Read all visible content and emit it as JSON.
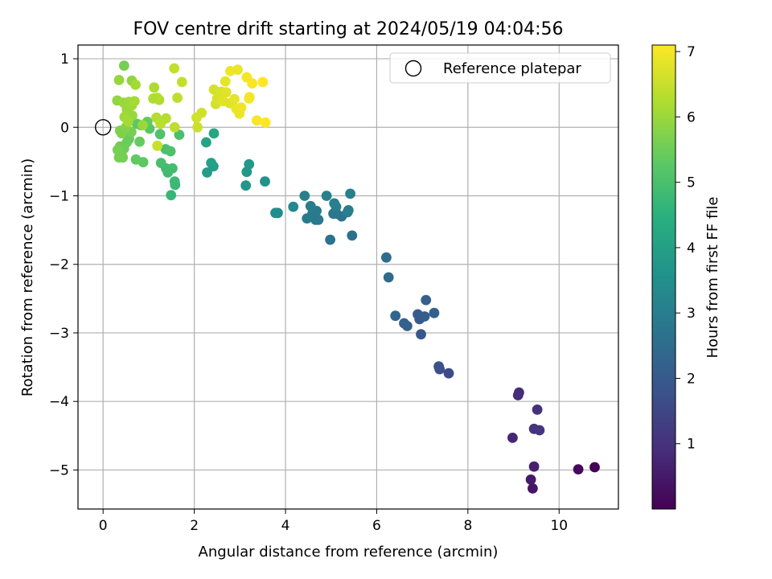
{
  "chart_data": {
    "type": "scatter",
    "title": "FOV centre drift starting at 2024/05/19 04:04:56",
    "xlabel": "Angular distance from reference (arcmin)",
    "ylabel": "Rotation from reference (arcmin)",
    "xlim": [
      -0.55,
      11.3
    ],
    "ylim": [
      -5.57,
      1.2
    ],
    "xticks": [
      0,
      2,
      4,
      6,
      8,
      10
    ],
    "yticks": [
      1,
      0,
      -1,
      -2,
      -3,
      -4,
      -5
    ],
    "xtick_labels": [
      "0",
      "2",
      "4",
      "6",
      "8",
      "10"
    ],
    "ytick_labels": [
      "1",
      "0",
      "−1",
      "−2",
      "−3",
      "−4",
      "−5"
    ],
    "grid": true,
    "legend": {
      "position": "top-right",
      "entries": [
        "Reference platepar"
      ]
    },
    "reference_point": {
      "x": 0,
      "y": 0,
      "label": "Reference platepar"
    },
    "colorbar": {
      "label": "Hours from first FF file",
      "min": 0.0,
      "max": 7.1,
      "ticks": [
        1,
        2,
        3,
        4,
        5,
        6,
        7
      ],
      "tick_labels": [
        "1",
        "2",
        "3",
        "4",
        "5",
        "6",
        "7"
      ],
      "colormap": "viridis"
    },
    "series": [
      {
        "x": [
          10.78,
          10.42,
          9.42,
          9.38,
          9.45,
          8.98,
          9.12,
          9.1,
          9.52,
          9.45,
          9.57
        ],
        "y": [
          -4.96,
          -4.99,
          -5.27,
          -5.14,
          -4.95,
          -4.53,
          -3.87,
          -3.91,
          -4.12,
          -4.4,
          -4.42
        ],
        "hours": [
          0.05,
          0.15,
          0.4,
          0.5,
          0.6,
          0.75,
          0.85,
          0.9,
          1.0,
          1.05,
          1.1
        ]
      },
      {
        "x": [
          7.58,
          7.38,
          7.36,
          6.97,
          6.94,
          6.9,
          7.05,
          7.08,
          7.26,
          6.67,
          6.6,
          6.41,
          6.26,
          6.21
        ],
        "y": [
          -3.59,
          -3.53,
          -3.49,
          -3.02,
          -2.8,
          -2.73,
          -2.76,
          -2.52,
          -2.71,
          -2.9,
          -2.86,
          -2.75,
          -2.19,
          -1.9
        ],
        "hours": [
          1.6,
          1.7,
          1.75,
          1.95,
          2.0,
          2.05,
          2.1,
          2.15,
          2.2,
          2.2,
          2.25,
          2.3,
          2.45,
          2.5
        ]
      },
      {
        "x": [
          5.46,
          4.98,
          5.23,
          5.12,
          5.05,
          4.72,
          4.66,
          4.47,
          4.59,
          4.55,
          4.68,
          5.38,
          5.11,
          5.07,
          5.42,
          5.36,
          4.9,
          4.42
        ],
        "y": [
          -1.58,
          -1.64,
          -1.3,
          -1.26,
          -1.26,
          -1.35,
          -1.35,
          -1.33,
          -1.26,
          -1.15,
          -1.22,
          -1.21,
          -1.16,
          -1.11,
          -0.97,
          -1.24,
          -1.0,
          -1.0
        ],
        "hours": [
          2.6,
          2.65,
          2.7,
          2.75,
          2.8,
          2.85,
          2.85,
          2.9,
          2.9,
          2.95,
          2.95,
          3.0,
          3.0,
          3.05,
          3.05,
          3.0,
          3.1,
          3.1
        ]
      },
      {
        "x": [
          4.17,
          3.83,
          3.78,
          3.55,
          3.13,
          3.15,
          3.2,
          2.28,
          2.42,
          2.37,
          2.26,
          2.43
        ],
        "y": [
          -1.16,
          -1.25,
          -1.25,
          -0.79,
          -0.85,
          -0.65,
          -0.54,
          -0.66,
          -0.57,
          -0.52,
          -0.22,
          -0.09
        ],
        "hours": [
          3.3,
          3.4,
          3.45,
          3.6,
          3.7,
          3.75,
          3.8,
          3.9,
          3.95,
          4.0,
          4.1,
          4.2
        ]
      },
      {
        "x": [
          1.49,
          1.58,
          1.57,
          1.42,
          1.52,
          1.38,
          1.27,
          1.37,
          1.48,
          1.67,
          1.25,
          1.02,
          0.83,
          0.74,
          0.97,
          0.8,
          0.57,
          0.52,
          0.37,
          0.46,
          0.43,
          0.32,
          0.35,
          0.62,
          0.37,
          0.41,
          0.5,
          0.55,
          0.6,
          0.88,
          0.72,
          0.46
        ],
        "y": [
          -0.99,
          -0.84,
          -0.79,
          -0.66,
          -0.6,
          -0.6,
          -0.52,
          -0.32,
          -0.35,
          -0.11,
          -0.1,
          -0.02,
          0.03,
          0.05,
          0.08,
          -0.21,
          -0.17,
          -0.22,
          -0.28,
          -0.31,
          -0.44,
          -0.33,
          -0.44,
          -0.07,
          -0.05,
          -0.09,
          0.0,
          0.12,
          0.18,
          -0.51,
          -0.47,
          0.9
        ],
        "hours": [
          4.7,
          4.75,
          4.8,
          4.85,
          4.9,
          4.9,
          4.95,
          5.0,
          5.05,
          5.0,
          5.1,
          5.2,
          5.25,
          5.3,
          5.35,
          5.4,
          5.4,
          5.45,
          5.5,
          5.5,
          5.55,
          5.6,
          5.6,
          5.6,
          5.7,
          5.7,
          5.75,
          5.8,
          5.8,
          5.3,
          5.35,
          5.6
        ]
      },
      {
        "x": [
          0.63,
          0.35,
          0.31,
          0.45,
          0.52,
          0.57,
          0.63,
          0.69,
          0.71,
          0.87,
          1.12,
          1.23,
          1.19,
          1.17,
          1.1,
          1.38,
          1.26,
          1.57,
          1.63,
          1.56,
          1.73,
          0.64,
          0.47,
          0.55
        ],
        "y": [
          0.68,
          0.69,
          0.39,
          0.36,
          0.26,
          0.37,
          0.32,
          0.38,
          0.62,
          0.03,
          0.58,
          0.4,
          0.43,
          0.14,
          0.42,
          0.13,
          0.05,
          0.0,
          0.43,
          0.86,
          0.66,
          0.17,
          0.15,
          0.08
        ],
        "hours": [
          5.9,
          5.95,
          5.9,
          6.0,
          6.0,
          6.05,
          6.05,
          6.1,
          6.1,
          6.0,
          6.2,
          6.25,
          6.3,
          6.3,
          6.25,
          6.3,
          6.35,
          6.4,
          6.4,
          6.45,
          6.45,
          6.0,
          6.05,
          6.1
        ]
      },
      {
        "x": [
          1.19,
          2.07,
          2.16,
          2.05,
          2.47,
          2.43,
          2.61,
          2.78,
          2.59,
          2.5,
          2.7,
          2.88,
          2.99,
          2.92,
          3.03,
          3.2,
          3.21,
          3.37,
          3.56,
          3.5,
          3.27,
          3.15,
          2.79,
          2.95,
          2.68,
          2.64
        ],
        "y": [
          -0.27,
          0.0,
          0.21,
          0.14,
          0.34,
          0.55,
          0.48,
          0.35,
          0.52,
          0.42,
          0.51,
          0.41,
          0.2,
          0.27,
          0.29,
          0.42,
          0.44,
          0.1,
          0.07,
          0.66,
          0.64,
          0.73,
          0.82,
          0.84,
          0.67,
          0.38
        ],
        "hours": [
          6.5,
          6.55,
          6.6,
          6.6,
          6.65,
          6.65,
          6.7,
          6.75,
          6.7,
          6.7,
          6.8,
          6.85,
          6.9,
          6.9,
          6.95,
          7.0,
          7.0,
          7.05,
          7.1,
          7.1,
          7.05,
          7.0,
          6.95,
          6.9,
          6.85,
          6.8
        ]
      }
    ]
  }
}
